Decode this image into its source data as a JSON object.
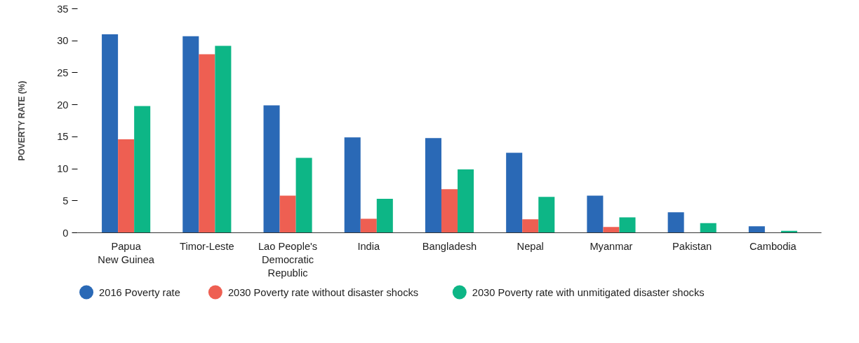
{
  "chart_data": {
    "type": "bar",
    "ylabel": "POVERTY RATE (%)",
    "categories": [
      "Papua\nNew Guinea",
      "Timor-Leste",
      "Lao People's\nDemocratic\nRepublic",
      "India",
      "Bangladesh",
      "Nepal",
      "Myanmar",
      "Pakistan",
      "Cambodia"
    ],
    "series": [
      {
        "name": "2016 Poverty rate",
        "color": "#2a69b6",
        "values": [
          31.0,
          30.7,
          19.9,
          14.9,
          14.8,
          12.5,
          5.8,
          3.2,
          1.0
        ]
      },
      {
        "name": "2030 Poverty rate without disaster shocks",
        "color": "#ee5f52",
        "values": [
          14.6,
          27.9,
          5.8,
          2.2,
          6.8,
          2.1,
          0.9,
          null,
          null
        ]
      },
      {
        "name": "2030 Poverty rate with unmitigated disaster shocks",
        "color": "#0db686",
        "values": [
          19.8,
          29.2,
          11.7,
          5.3,
          9.9,
          5.6,
          2.4,
          1.5,
          0.3
        ]
      }
    ],
    "ylim": [
      0,
      35
    ],
    "yticks": [
      0,
      5,
      10,
      15,
      20,
      25,
      30,
      35
    ],
    "grid": false,
    "legend": "bottom"
  }
}
